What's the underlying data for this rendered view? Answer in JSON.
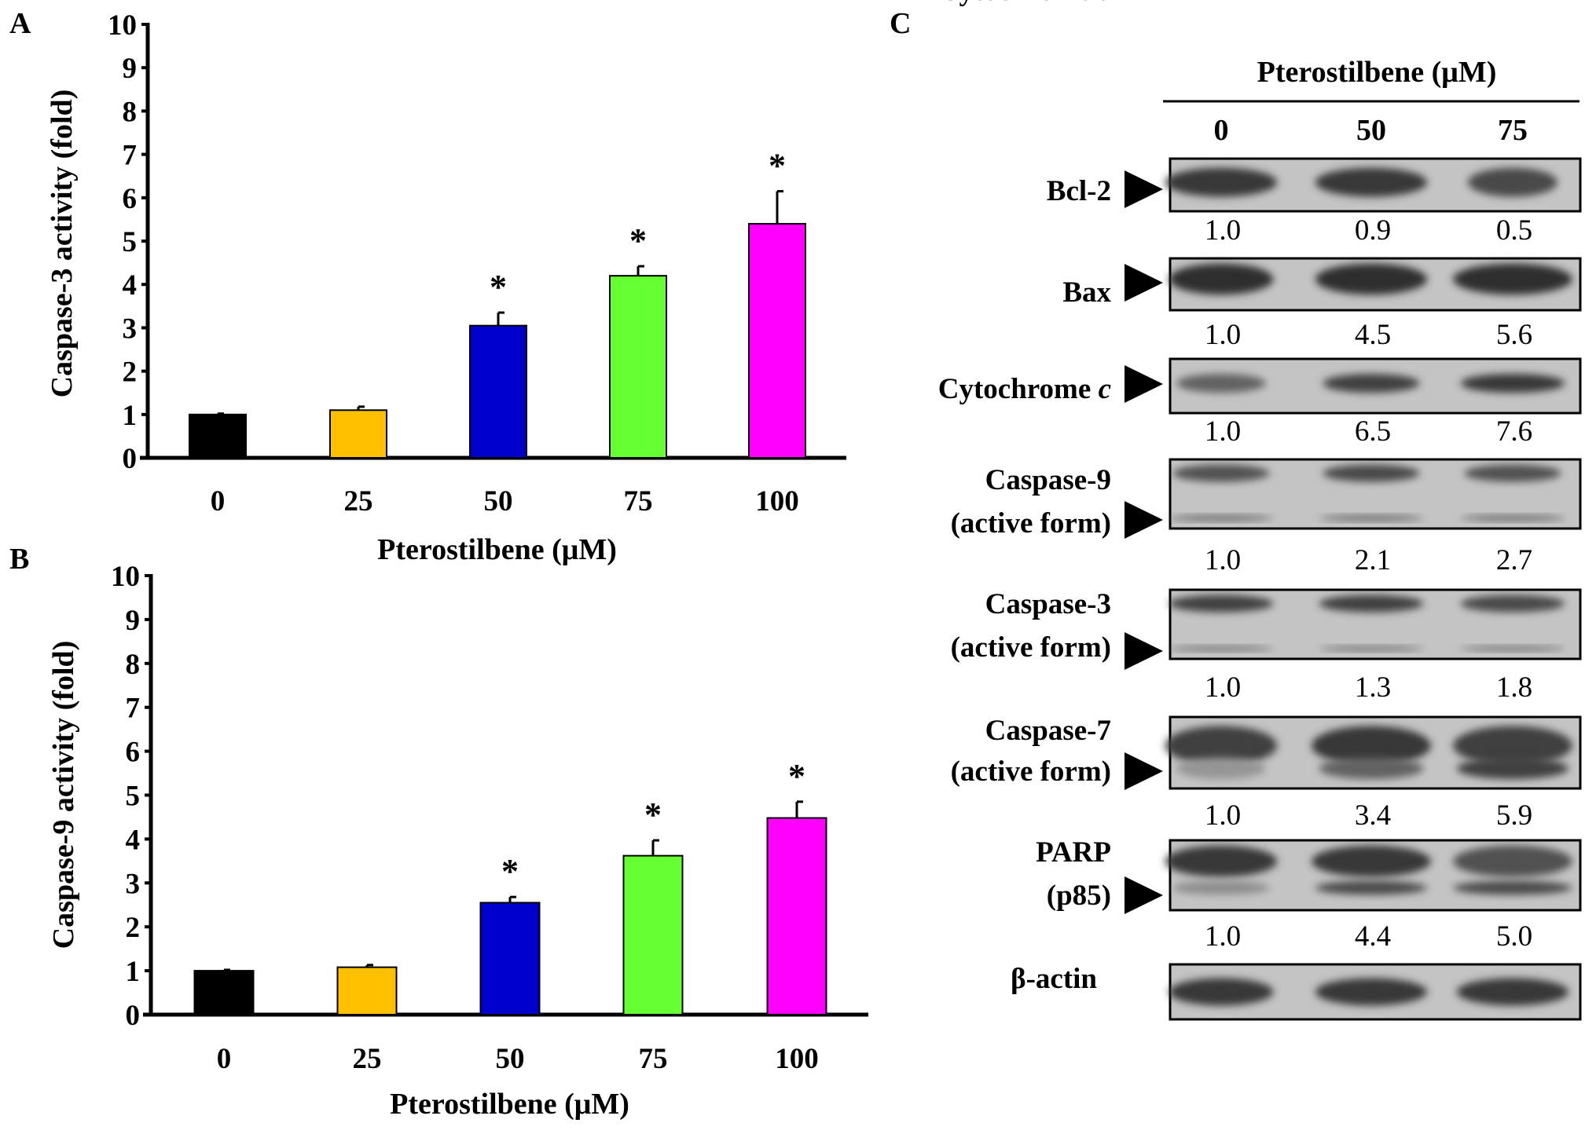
{
  "chart_data": [
    {
      "panel": "A",
      "type": "bar",
      "title": "",
      "xlabel": "Pterostilbene (μM)",
      "ylabel": "Caspase-3 activity (fold)",
      "ylim": [
        0,
        10
      ],
      "yticks": [
        "0",
        "1",
        "2",
        "3",
        "4",
        "5",
        "6",
        "7",
        "8",
        "9",
        "10"
      ],
      "categories": [
        "0",
        "25",
        "50",
        "75",
        "100"
      ],
      "values": [
        1.0,
        1.1,
        3.05,
        4.2,
        5.4
      ],
      "errors": [
        0.02,
        0.08,
        0.3,
        0.22,
        0.75
      ],
      "significance": [
        "",
        "",
        "*",
        "*",
        "*"
      ],
      "colors": [
        "#000000",
        "#ffc000",
        "#0000cc",
        "#66ff33",
        "#ff00ff"
      ],
      "grid": false
    },
    {
      "panel": "B",
      "type": "bar",
      "title": "",
      "xlabel": "Pterostilbene (μM)",
      "ylabel": "Caspase-9 activity (fold)",
      "ylim": [
        0,
        10
      ],
      "yticks": [
        "0",
        "1",
        "2",
        "3",
        "4",
        "5",
        "6",
        "7",
        "8",
        "9",
        "10"
      ],
      "categories": [
        "0",
        "25",
        "50",
        "75",
        "100"
      ],
      "values": [
        1.0,
        1.08,
        2.55,
        3.62,
        4.48
      ],
      "errors": [
        0.02,
        0.05,
        0.13,
        0.35,
        0.37
      ],
      "significance": [
        "",
        "",
        "*",
        "*",
        "*"
      ],
      "colors": [
        "#000000",
        "#ffc000",
        "#0000cc",
        "#66ff33",
        "#ff00ff"
      ],
      "grid": false
    }
  ],
  "panel_labels": {
    "a": "A",
    "b": "B",
    "c": "C"
  },
  "western": {
    "header": "Pterostilbene (μM)",
    "lanes": [
      "0",
      "50",
      "75"
    ],
    "rows": [
      {
        "label": [
          "Bcl-2"
        ],
        "values": [
          "1.0",
          "0.9",
          "0.5"
        ]
      },
      {
        "label": [
          "Bax"
        ],
        "values": [
          "1.0",
          "4.5",
          "5.6"
        ]
      },
      {
        "label": [
          "Cytochrome ",
          "c"
        ],
        "values": [
          "1.0",
          "6.5",
          "7.6"
        ]
      },
      {
        "label": [
          "Caspase-9",
          "(active form)"
        ],
        "values": [
          "1.0",
          "2.1",
          "2.7"
        ]
      },
      {
        "label": [
          "Caspase-3",
          "(active form)"
        ],
        "values": [
          "1.0",
          "1.3",
          "1.8"
        ]
      },
      {
        "label": [
          "Caspase-7",
          "(active form)"
        ],
        "values": [
          "1.0",
          "3.4",
          "5.9"
        ]
      },
      {
        "label": [
          "PARP",
          "(p85)"
        ],
        "values": [
          "1.0",
          "4.4",
          "5.0"
        ]
      },
      {
        "label": [
          "β-actin"
        ],
        "values": []
      }
    ]
  }
}
